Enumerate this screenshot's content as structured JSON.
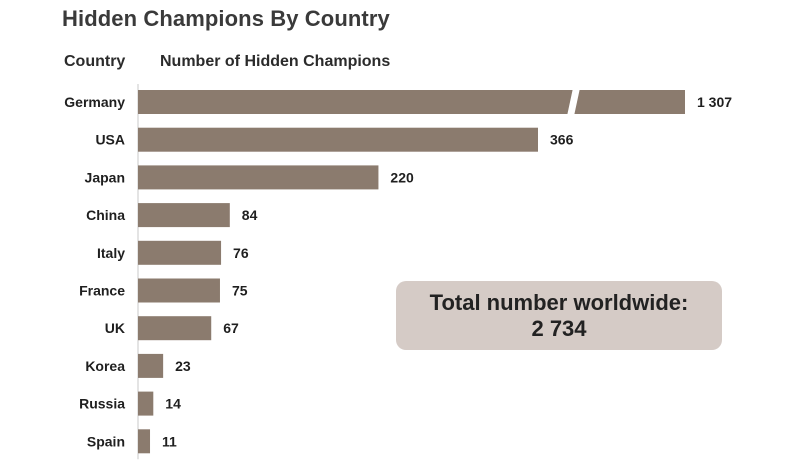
{
  "title": "Hidden Champions By Country",
  "headers": {
    "country": "Country",
    "number": "Number of Hidden Champions"
  },
  "total": {
    "label": "Total number worldwide:",
    "value": "2 734"
  },
  "colors": {
    "bar": "#8b7b6e",
    "box": "#d5cbc6",
    "title": "#3a3a3a"
  },
  "chart_data": {
    "type": "bar",
    "orientation": "horizontal",
    "axis_break": true,
    "categories": [
      "Germany",
      "USA",
      "Japan",
      "China",
      "Italy",
      "France",
      "UK",
      "Korea",
      "Russia",
      "Spain"
    ],
    "values": [
      1307,
      366,
      220,
      84,
      76,
      75,
      67,
      23,
      14,
      11
    ],
    "value_labels": [
      "1 307",
      "366",
      "220",
      "84",
      "76",
      "75",
      "67",
      "23",
      "14",
      "11"
    ],
    "xlabel": "Number of Hidden Champions",
    "ylabel": "Country",
    "title": "Hidden Champions By Country"
  }
}
